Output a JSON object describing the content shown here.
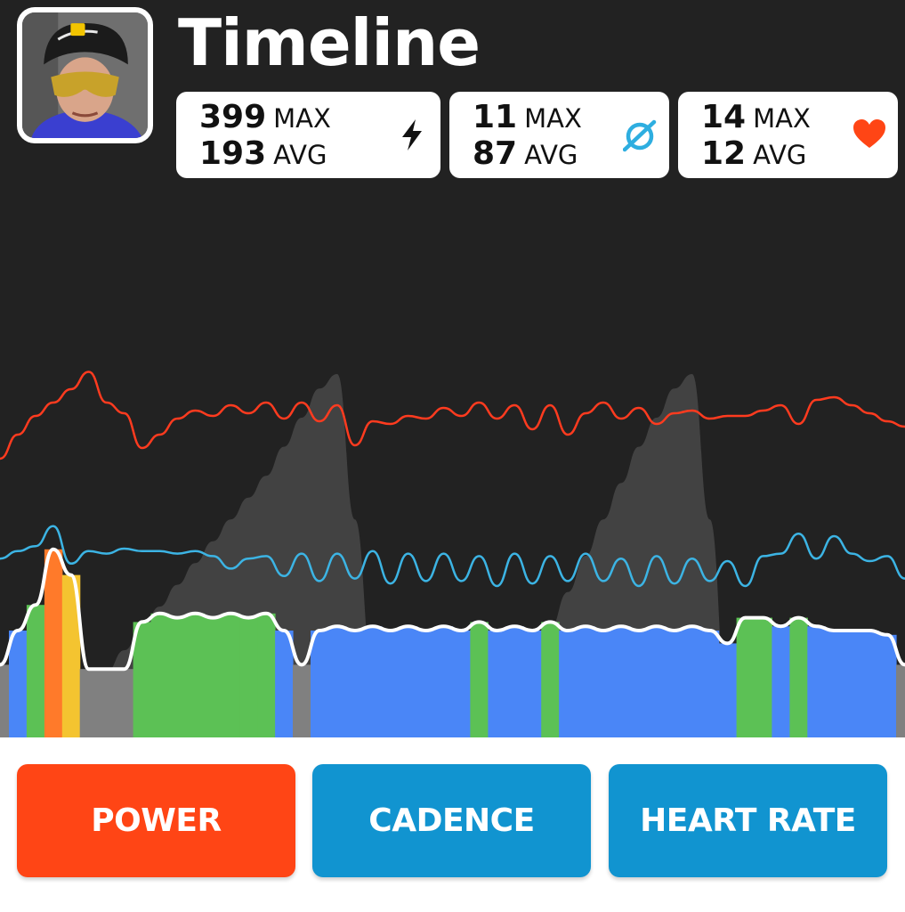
{
  "header": {
    "title": "Timeline"
  },
  "stats": {
    "power": {
      "max_value": "399",
      "max_label": "MAX",
      "avg_value": "193",
      "avg_label": "AVG",
      "icon": "lightning-bolt-icon"
    },
    "cadence": {
      "max_value": "11",
      "max_label": "MAX",
      "avg_value": "87",
      "avg_label": "AVG",
      "icon": "cadence-gauge-icon"
    },
    "heart_rate": {
      "max_value": "14",
      "max_label": "MAX",
      "avg_value": "12",
      "avg_label": "AVG",
      "icon": "heart-icon"
    }
  },
  "buttons": {
    "power": "POWER",
    "cadence": "CADENCE",
    "heart_rate": "HEART RATE"
  },
  "colors": {
    "background": "#222222",
    "power_accent": "#ff4515",
    "cadence_accent": "#1194d0",
    "heart_line": "#ff3b1f",
    "cadence_line": "#3cb4e4",
    "elevation": "#454545",
    "zone_blue": "#4a86f7",
    "zone_green": "#5cc155",
    "zone_yellow": "#f4c430",
    "zone_orange": "#ff7a2a",
    "zone_gray": "#808080"
  },
  "chart_data": {
    "type": "area",
    "title": "",
    "xlabel": "",
    "ylabel": "",
    "grid": false,
    "legend": "none",
    "series": [
      {
        "name": "",
        "color": "#ff3b1f",
        "values": [
          30,
          48,
          62,
          72,
          82,
          95,
          72,
          64,
          38,
          48,
          60,
          66,
          62,
          70,
          64,
          72,
          60,
          72,
          58,
          70,
          40,
          58,
          56,
          62,
          60,
          68,
          62,
          72,
          60,
          70,
          52,
          70,
          48,
          64,
          72,
          60,
          68,
          56,
          64,
          66,
          60,
          62,
          62,
          66,
          70,
          56,
          74,
          76,
          70,
          64,
          58,
          54
        ]
      },
      {
        "name": "",
        "color": "#3cb4e4",
        "values": [
          52,
          58,
          62,
          78,
          48,
          58,
          56,
          60,
          58,
          58,
          56,
          58,
          54,
          44,
          52,
          54,
          38,
          56,
          34,
          56,
          36,
          58,
          32,
          56,
          34,
          56,
          34,
          54,
          30,
          56,
          32,
          54,
          34,
          56,
          34,
          52,
          30,
          54,
          32,
          52,
          34,
          50,
          30,
          54,
          56,
          72,
          52,
          70,
          56,
          50,
          54,
          36
        ]
      },
      {
        "name": "",
        "color": "#ffffff",
        "values": [
          14,
          30,
          42,
          68,
          56,
          12,
          12,
          12,
          34,
          38,
          36,
          38,
          36,
          38,
          36,
          38,
          30,
          14,
          30,
          32,
          30,
          32,
          30,
          32,
          30,
          32,
          30,
          34,
          30,
          32,
          30,
          34,
          30,
          32,
          30,
          32,
          30,
          32,
          30,
          32,
          30,
          24,
          36,
          36,
          32,
          36,
          32,
          30,
          30,
          30,
          28,
          14
        ]
      },
      {
        "name": "",
        "color": "#454545",
        "values": [
          0,
          2,
          4,
          6,
          8,
          12,
          18,
          24,
          30,
          36,
          42,
          48,
          54,
          60,
          66,
          72,
          80,
          88,
          96,
          100,
          60,
          20,
          8,
          4,
          2,
          0,
          2,
          6,
          10,
          16,
          22,
          30,
          40,
          50,
          60,
          70,
          80,
          88,
          96,
          100,
          60,
          10,
          4,
          2,
          0,
          0,
          0,
          0,
          0,
          0,
          0,
          0
        ]
      }
    ]
  }
}
